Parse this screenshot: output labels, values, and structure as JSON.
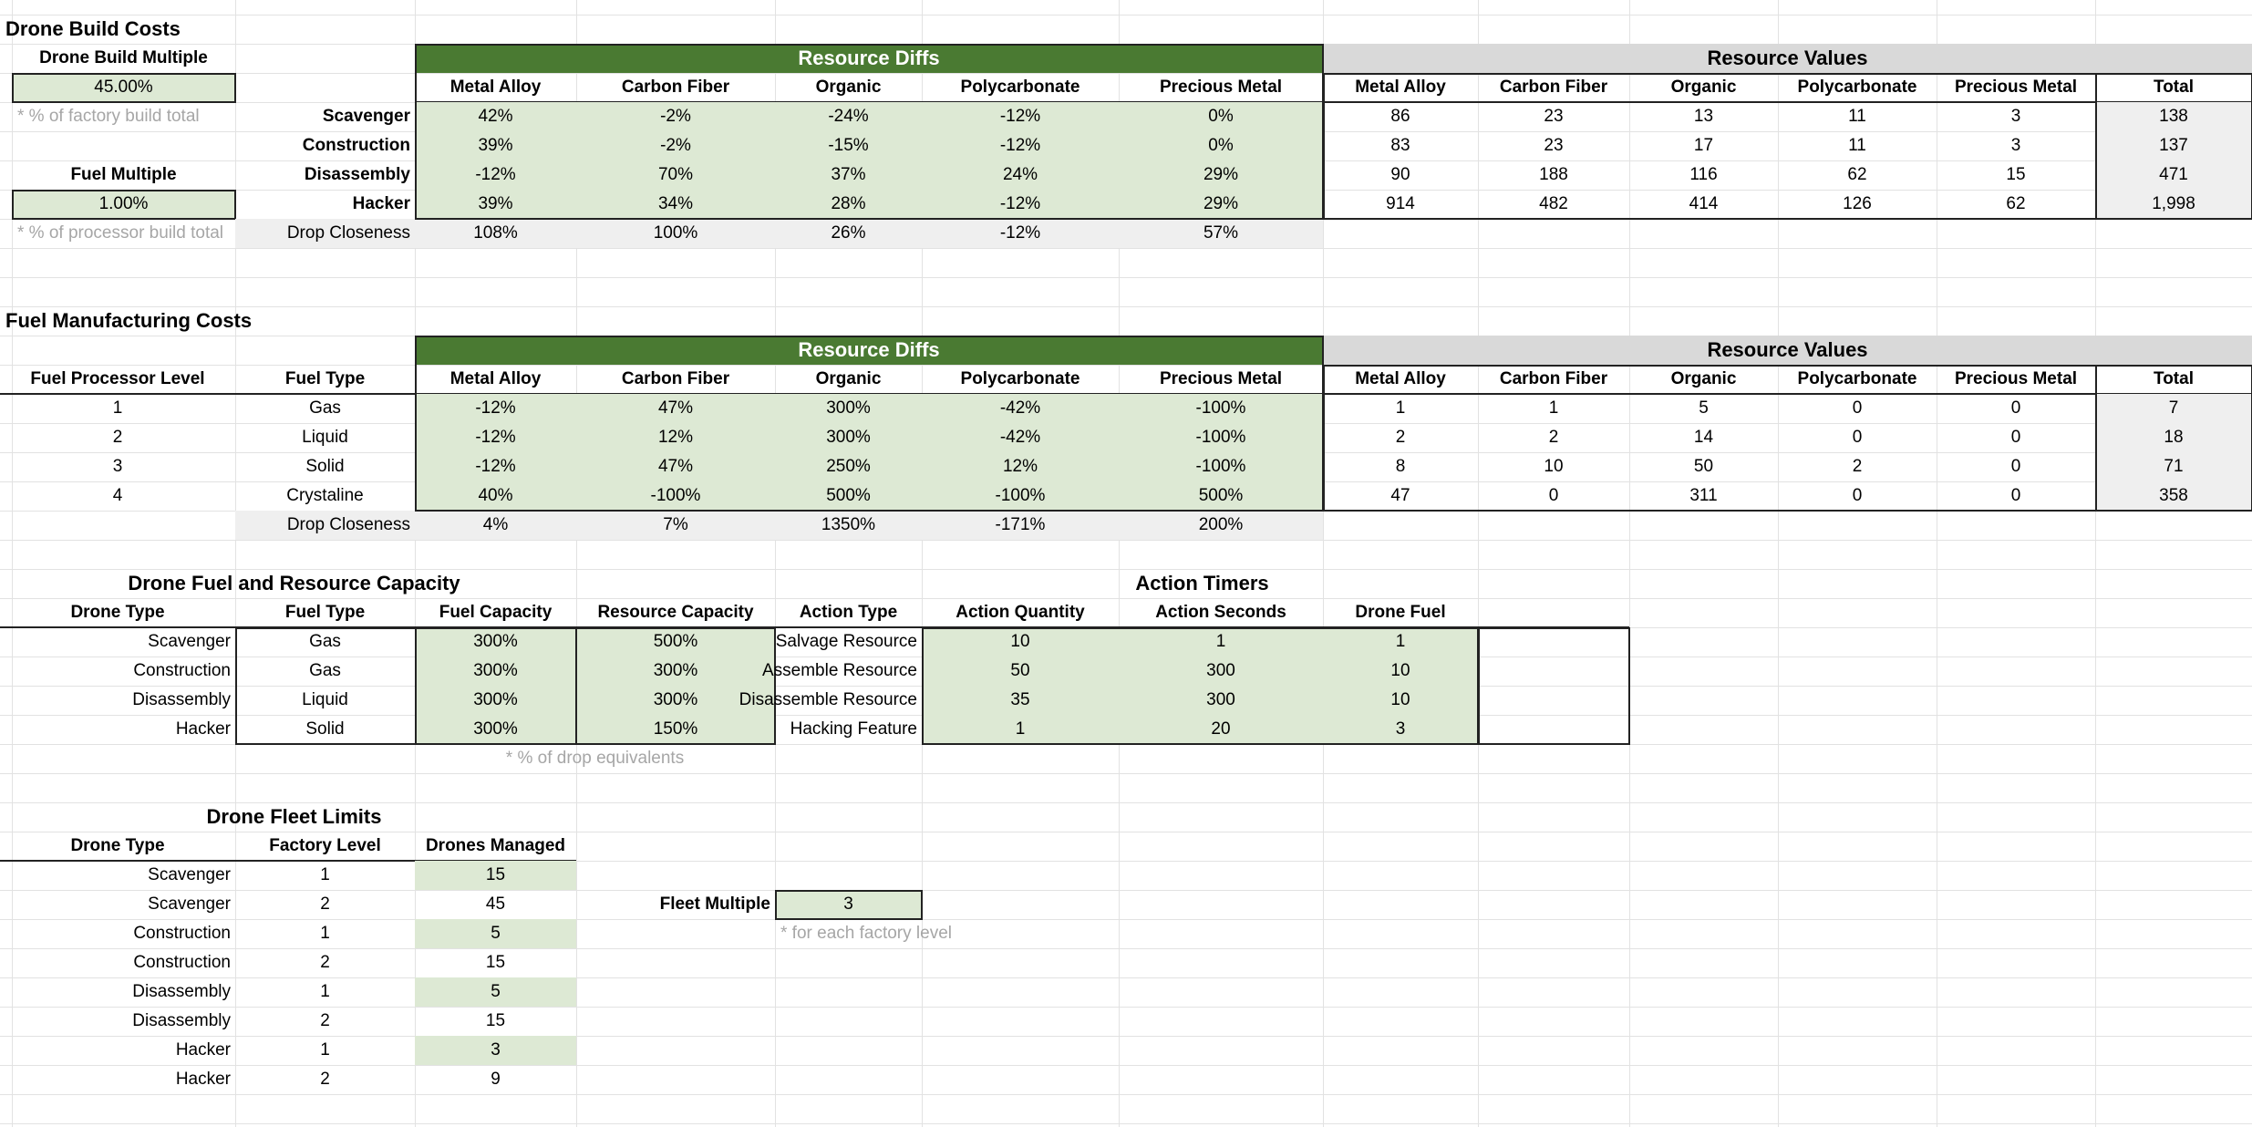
{
  "drone_build": {
    "title": "Drone Build Costs",
    "build_multiple_label": "Drone Build Multiple",
    "build_multiple_value": "45.00%",
    "build_multiple_note": "* % of factory build total",
    "fuel_multiple_label": "Fuel Multiple",
    "fuel_multiple_value": "1.00%",
    "fuel_multiple_note": "* % of processor build total",
    "diffs_header": "Resource Diffs",
    "values_header": "Resource Values",
    "diff_columns": [
      "Metal Alloy",
      "Carbon Fiber",
      "Organic",
      "Polycarbonate",
      "Precious Metal"
    ],
    "value_columns": [
      "Metal Alloy",
      "Carbon Fiber",
      "Organic",
      "Polycarbonate",
      "Precious Metal",
      "Total"
    ],
    "rows": [
      {
        "label": "Scavenger",
        "diffs": [
          "42%",
          "-2%",
          "-24%",
          "-12%",
          "0%"
        ],
        "values": [
          "86",
          "23",
          "13",
          "11",
          "3",
          "138"
        ]
      },
      {
        "label": "Construction",
        "diffs": [
          "39%",
          "-2%",
          "-15%",
          "-12%",
          "0%"
        ],
        "values": [
          "83",
          "23",
          "17",
          "11",
          "3",
          "137"
        ]
      },
      {
        "label": "Disassembly",
        "diffs": [
          "-12%",
          "70%",
          "37%",
          "24%",
          "29%"
        ],
        "values": [
          "90",
          "188",
          "116",
          "62",
          "15",
          "471"
        ]
      },
      {
        "label": "Hacker",
        "diffs": [
          "39%",
          "34%",
          "28%",
          "-12%",
          "29%"
        ],
        "values": [
          "914",
          "482",
          "414",
          "126",
          "62",
          "1,998"
        ]
      }
    ],
    "closeness_label": "Drop Closeness",
    "closeness": [
      "108%",
      "100%",
      "26%",
      "-12%",
      "57%"
    ]
  },
  "fuel_manufacturing": {
    "title": "Fuel Manufacturing Costs",
    "diffs_header": "Resource Diffs",
    "values_header": "Resource Values",
    "col_level": "Fuel Processor Level",
    "col_type": "Fuel Type",
    "diff_columns": [
      "Metal Alloy",
      "Carbon Fiber",
      "Organic",
      "Polycarbonate",
      "Precious Metal"
    ],
    "value_columns": [
      "Metal Alloy",
      "Carbon Fiber",
      "Organic",
      "Polycarbonate",
      "Precious Metal",
      "Total"
    ],
    "rows": [
      {
        "level": "1",
        "type": "Gas",
        "diffs": [
          "-12%",
          "47%",
          "300%",
          "-42%",
          "-100%"
        ],
        "values": [
          "1",
          "1",
          "5",
          "0",
          "0",
          "7"
        ]
      },
      {
        "level": "2",
        "type": "Liquid",
        "diffs": [
          "-12%",
          "12%",
          "300%",
          "-42%",
          "-100%"
        ],
        "values": [
          "2",
          "2",
          "14",
          "0",
          "0",
          "18"
        ]
      },
      {
        "level": "3",
        "type": "Solid",
        "diffs": [
          "-12%",
          "47%",
          "250%",
          "12%",
          "-100%"
        ],
        "values": [
          "8",
          "10",
          "50",
          "2",
          "0",
          "71"
        ]
      },
      {
        "level": "4",
        "type": "Crystaline",
        "diffs": [
          "40%",
          "-100%",
          "500%",
          "-100%",
          "500%"
        ],
        "values": [
          "47",
          "0",
          "311",
          "0",
          "0",
          "358"
        ]
      }
    ],
    "closeness_label": "Drop Closeness",
    "closeness": [
      "4%",
      "7%",
      "1350%",
      "-171%",
      "200%"
    ]
  },
  "fuel_capacity": {
    "title": "Drone Fuel and Resource Capacity",
    "columns": [
      "Drone Type",
      "Fuel Type",
      "Fuel Capacity",
      "Resource Capacity"
    ],
    "rows": [
      [
        "Scavenger",
        "Gas",
        "300%",
        "500%"
      ],
      [
        "Construction",
        "Gas",
        "300%",
        "300%"
      ],
      [
        "Disassembly",
        "Liquid",
        "300%",
        "300%"
      ],
      [
        "Hacker",
        "Solid",
        "300%",
        "150%"
      ]
    ],
    "note": "* % of drop equivalents"
  },
  "action_timers": {
    "title": "Action Timers",
    "columns": [
      "Action Type",
      "Action Quantity",
      "Action Seconds",
      "Drone Fuel"
    ],
    "rows": [
      [
        "Salvage Resource",
        "10",
        "1",
        "1"
      ],
      [
        "Assemble Resource",
        "50",
        "300",
        "10"
      ],
      [
        "Disassemble Resource",
        "35",
        "300",
        "10"
      ],
      [
        "Hacking Feature",
        "1",
        "20",
        "3"
      ]
    ]
  },
  "fleet_limits": {
    "title": "Drone Fleet Limits",
    "columns": [
      "Drone Type",
      "Factory Level",
      "Drones Managed"
    ],
    "rows": [
      [
        "Scavenger",
        "1",
        "15"
      ],
      [
        "Scavenger",
        "2",
        "45"
      ],
      [
        "Construction",
        "1",
        "5"
      ],
      [
        "Construction",
        "2",
        "15"
      ],
      [
        "Disassembly",
        "1",
        "5"
      ],
      [
        "Disassembly",
        "2",
        "15"
      ],
      [
        "Hacker",
        "1",
        "3"
      ],
      [
        "Hacker",
        "2",
        "9"
      ]
    ],
    "fleet_multiple_label": "Fleet Multiple",
    "fleet_multiple_value": "3",
    "fleet_multiple_note": "* for each factory level"
  },
  "colors": {
    "header_green": "#4a7a32",
    "cell_green": "#dde9d4",
    "header_gray": "#d9d9d9",
    "light_gray": "#efefef",
    "note_gray": "#a6a6a6"
  }
}
